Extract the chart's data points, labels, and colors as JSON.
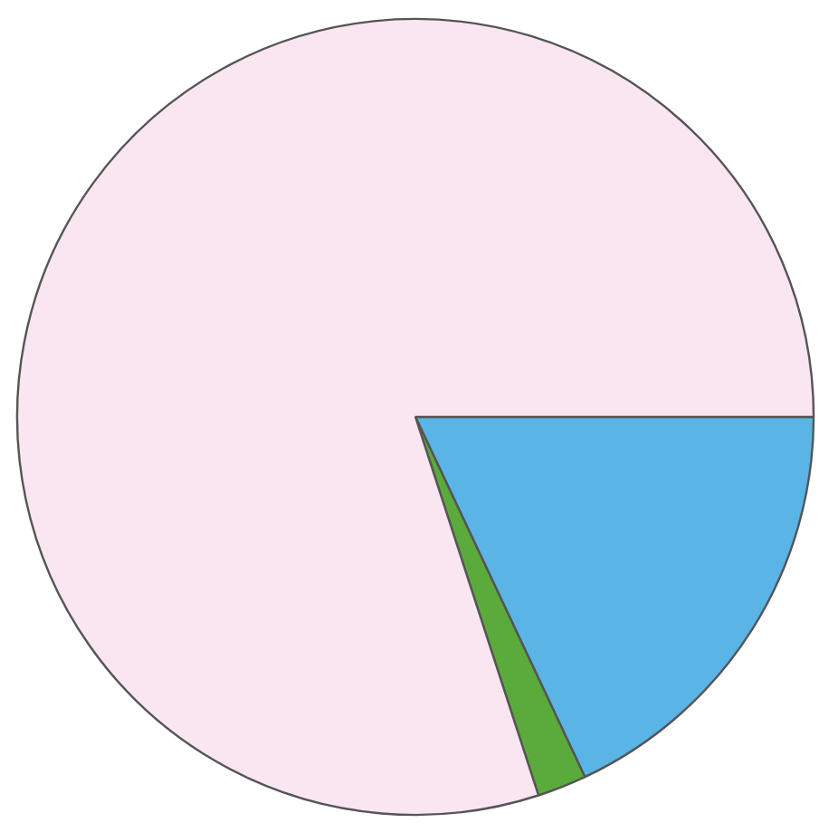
{
  "chart_data": {
    "type": "pie",
    "categories": [
      null,
      null,
      null
    ],
    "values": [
      18,
      2,
      80
    ],
    "colors": [
      "#5ab4e5",
      "#5aab3c",
      "#f9e6f1"
    ]
  }
}
